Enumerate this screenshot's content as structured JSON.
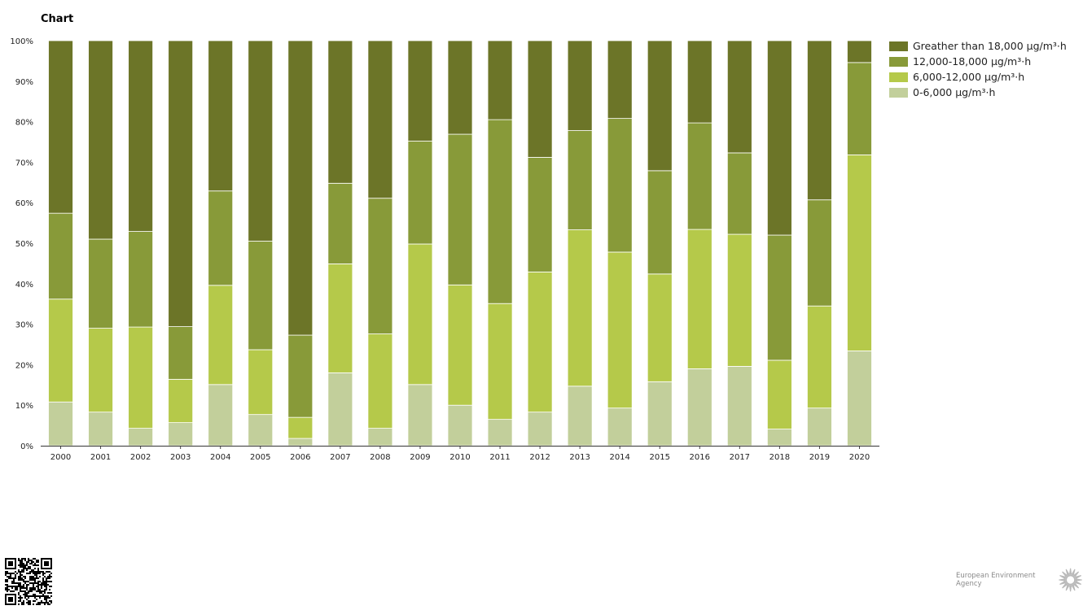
{
  "chart_data": {
    "type": "bar",
    "stacked": true,
    "title": "Chart",
    "xlabel": "",
    "ylabel": "",
    "ylim": [
      0,
      100
    ],
    "y_tick_labels": [
      "0%",
      "10%",
      "20%",
      "30%",
      "40%",
      "50%",
      "60%",
      "70%",
      "80%",
      "90%",
      "100%"
    ],
    "grid": false,
    "legend_position": "top-right",
    "categories": [
      "2000",
      "2001",
      "2002",
      "2003",
      "2004",
      "2005",
      "2006",
      "2007",
      "2008",
      "2009",
      "2010",
      "2011",
      "2012",
      "2013",
      "2014",
      "2015",
      "2016",
      "2017",
      "2018",
      "2019",
      "2020"
    ],
    "series": [
      {
        "name": "0-6,000 µg/m³·h",
        "color": "#c2cf9b",
        "values": [
          10.8,
          8.3,
          4.3,
          5.7,
          15.1,
          7.7,
          1.8,
          18.0,
          4.3,
          15.1,
          10.0,
          6.5,
          8.3,
          14.7,
          9.3,
          15.8,
          19.0,
          19.6,
          4.1,
          9.3,
          23.4
        ]
      },
      {
        "name": "6,000-12,000 µg/m³·h",
        "color": "#b5c94a",
        "values": [
          25.4,
          20.7,
          25.0,
          10.7,
          24.5,
          16.0,
          5.2,
          26.9,
          23.3,
          34.7,
          29.7,
          28.6,
          34.6,
          38.6,
          38.5,
          26.6,
          34.4,
          32.6,
          17.0,
          25.2,
          48.4
        ]
      },
      {
        "name": "12,000-18,000 µg/m³·h",
        "color": "#889a39",
        "values": [
          21.2,
          22.0,
          23.6,
          13.0,
          23.3,
          26.8,
          20.3,
          19.9,
          33.5,
          25.4,
          37.2,
          45.4,
          28.3,
          24.5,
          33.0,
          25.5,
          26.3,
          20.1,
          30.9,
          26.2,
          22.8
        ]
      },
      {
        "name": "Greather than 18,000 µg/m³·h",
        "color": "#6c7528",
        "values": [
          42.6,
          49.0,
          47.1,
          70.6,
          37.1,
          49.5,
          72.7,
          35.2,
          38.9,
          24.8,
          23.1,
          19.5,
          28.8,
          22.2,
          19.2,
          32.1,
          20.3,
          27.7,
          48.0,
          39.3,
          5.4
        ]
      }
    ]
  },
  "legend": {
    "items": [
      {
        "label": "Greather than 18,000 µg/m³·h",
        "color": "#6c7528"
      },
      {
        "label": "12,000-18,000 µg/m³·h",
        "color": "#889a39"
      },
      {
        "label": "6,000-12,000 µg/m³·h",
        "color": "#b5c94a"
      },
      {
        "label": "0-6,000 µg/m³·h",
        "color": "#c2cf9b"
      }
    ]
  },
  "footer": {
    "agency": "European Environment Agency",
    "qr_icon": "qr-code-icon",
    "logo_icon": "eea-sun-logo-icon"
  }
}
